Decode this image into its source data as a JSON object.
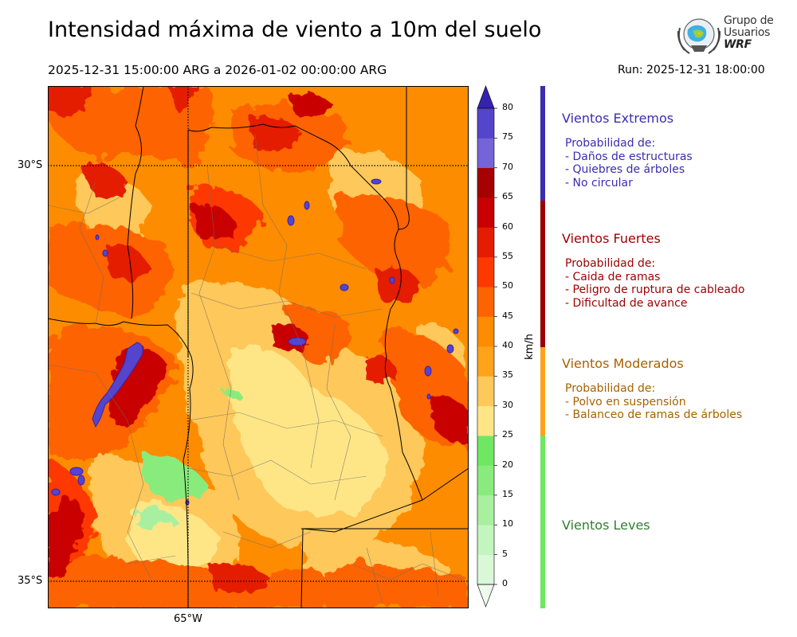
{
  "title": "Intensidad máxima de viento a 10m del suelo",
  "period": "2025-12-31 15:00:00 ARG  a  2026-01-02 00:00:00 ARG",
  "run": "Run: 2025-12-31 18:00:00",
  "logo": {
    "line1": "Grupo de",
    "line2": "Usuarios",
    "line3": "WRF"
  },
  "axes": {
    "lat_north": "30°S",
    "lat_south": "35°S",
    "lon": "65°W"
  },
  "colorbar": {
    "unit": "km/h",
    "ticks": [
      "0",
      "5",
      "10",
      "15",
      "20",
      "25",
      "30",
      "35",
      "40",
      "45",
      "50",
      "55",
      "60",
      "65",
      "70",
      "75",
      "80"
    ],
    "colors": [
      "#eefcee",
      "#d8f8d8",
      "#c3f5bf",
      "#a8f09f",
      "#8aeb7d",
      "#70e763",
      "#fee687",
      "#fec85a",
      "#fea31a",
      "#fe8c00",
      "#fd6401",
      "#fd3900",
      "#e41d00",
      "#c80000",
      "#a70000",
      "#7563d8",
      "#5544cc",
      "#3f33b9",
      "#3523ad"
    ]
  },
  "categories": [
    {
      "title": "Vientos Extremos",
      "color": "#3a2db0",
      "lines": [
        "Probabilidad de:",
        "- Daños de estructuras",
        "- Quiebres de árboles",
        "- No circular"
      ]
    },
    {
      "title": "Vientos Fuertes",
      "color": "#9d0000",
      "lines": [
        "Probabilidad de:",
        "- Caida de ramas",
        "- Peligro de ruptura de cableado",
        "- Dificultad de avance"
      ]
    },
    {
      "title": "Vientos Moderados",
      "color": "#a66200",
      "lines": [
        "Probabilidad de:",
        "- Polvo en suspensión",
        "- Balanceo de ramas de árboles"
      ]
    },
    {
      "title": "Vientos Leves",
      "color": "#2f7f2f",
      "lines": []
    }
  ],
  "category_bar_colors": [
    "#3a2db0",
    "#9d0000",
    "#fea31a",
    "#70e763"
  ]
}
